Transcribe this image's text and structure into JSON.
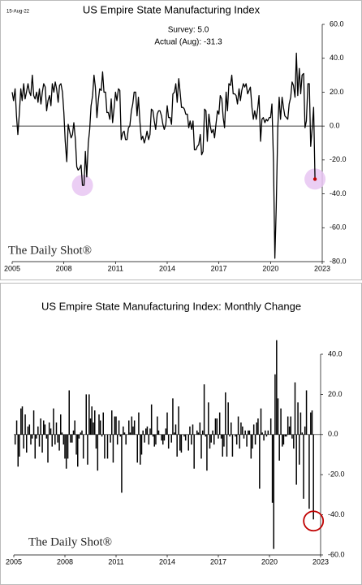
{
  "chart_data": [
    {
      "type": "line",
      "title": "US Empire State Manufacturing Index",
      "date": "15-Aug-22",
      "annotations": [
        "Survey:  5.0",
        "Actual (Aug):  -31.3"
      ],
      "logo": "The Daily Shot®",
      "color": "#000000",
      "marker_color": "#c00000",
      "highlight_color": "#e8c6f2",
      "x": [
        2005,
        2005.08,
        2005.17,
        2005.25,
        2005.33,
        2005.42,
        2005.5,
        2005.58,
        2005.67,
        2005.75,
        2005.83,
        2005.92,
        2006,
        2006.08,
        2006.17,
        2006.25,
        2006.33,
        2006.42,
        2006.5,
        2006.58,
        2006.67,
        2006.75,
        2006.83,
        2006.92,
        2007,
        2007.08,
        2007.17,
        2007.25,
        2007.33,
        2007.42,
        2007.5,
        2007.58,
        2007.67,
        2007.75,
        2007.83,
        2007.92,
        2008,
        2008.08,
        2008.17,
        2008.25,
        2008.33,
        2008.42,
        2008.5,
        2008.58,
        2008.67,
        2008.75,
        2008.83,
        2008.92,
        2009,
        2009.08,
        2009.17,
        2009.25,
        2009.33,
        2009.42,
        2009.5,
        2009.58,
        2009.67,
        2009.75,
        2009.83,
        2009.92,
        2010,
        2010.08,
        2010.17,
        2010.25,
        2010.33,
        2010.42,
        2010.5,
        2010.58,
        2010.67,
        2010.75,
        2010.83,
        2010.92,
        2011,
        2011.08,
        2011.17,
        2011.25,
        2011.33,
        2011.42,
        2011.5,
        2011.58,
        2011.67,
        2011.75,
        2011.83,
        2011.92,
        2012,
        2012.08,
        2012.17,
        2012.25,
        2012.33,
        2012.42,
        2012.5,
        2012.58,
        2012.67,
        2012.75,
        2012.83,
        2012.92,
        2013,
        2013.08,
        2013.17,
        2013.25,
        2013.33,
        2013.42,
        2013.5,
        2013.58,
        2013.67,
        2013.75,
        2013.83,
        2013.92,
        2014,
        2014.08,
        2014.17,
        2014.25,
        2014.33,
        2014.42,
        2014.5,
        2014.58,
        2014.67,
        2014.75,
        2014.83,
        2014.92,
        2015,
        2015.08,
        2015.17,
        2015.25,
        2015.33,
        2015.42,
        2015.5,
        2015.58,
        2015.67,
        2015.75,
        2015.83,
        2015.92,
        2016,
        2016.08,
        2016.17,
        2016.25,
        2016.33,
        2016.42,
        2016.5,
        2016.58,
        2016.67,
        2016.75,
        2016.83,
        2016.92,
        2017,
        2017.08,
        2017.17,
        2017.25,
        2017.33,
        2017.42,
        2017.5,
        2017.58,
        2017.67,
        2017.75,
        2017.83,
        2017.92,
        2018,
        2018.08,
        2018.17,
        2018.25,
        2018.33,
        2018.42,
        2018.5,
        2018.58,
        2018.67,
        2018.75,
        2018.83,
        2018.92,
        2019,
        2019.08,
        2019.17,
        2019.25,
        2019.33,
        2019.42,
        2019.5,
        2019.58,
        2019.67,
        2019.75,
        2019.83,
        2019.92,
        2020,
        2020.08,
        2020.17,
        2020.25,
        2020.33,
        2020.42,
        2020.5,
        2020.58,
        2020.67,
        2020.75,
        2020.83,
        2020.92,
        2021,
        2021.08,
        2021.17,
        2021.25,
        2021.33,
        2021.42,
        2021.5,
        2021.58,
        2021.67,
        2021.75,
        2021.83,
        2021.92,
        2022,
        2022.08,
        2022.17,
        2022.25,
        2022.33,
        2022.42,
        2022.5,
        2022.58
      ],
      "values": [
        20,
        15,
        22,
        6,
        -5,
        8,
        22,
        15,
        25,
        16,
        20,
        25,
        20,
        18,
        30,
        18,
        16,
        20,
        14,
        22,
        13,
        20,
        25,
        23,
        9,
        15,
        18,
        12,
        25,
        20,
        26,
        22,
        14,
        24,
        25,
        20,
        8,
        -9,
        -21,
        1,
        -3,
        -7,
        -5,
        2,
        -8,
        -24,
        -26,
        -25,
        -23,
        -35,
        -35,
        -15,
        -30,
        -10,
        -2,
        12,
        18,
        30,
        23,
        5,
        15,
        22,
        21,
        32,
        20,
        20,
        8,
        8,
        4,
        16,
        2,
        11,
        20,
        15,
        22,
        21,
        -8,
        -4,
        -3,
        -8,
        -8,
        -1,
        0,
        9,
        13,
        20,
        20,
        6,
        17,
        2,
        -8,
        -6,
        -10,
        -7,
        -3,
        -8,
        -5,
        10,
        9,
        3,
        -2,
        7,
        9,
        9,
        6,
        1,
        -2,
        1,
        12,
        5,
        5,
        1,
        19,
        20,
        25,
        14,
        28,
        20,
        11,
        11,
        10,
        7,
        7,
        -1,
        3,
        -2,
        3,
        -14,
        -14,
        -12,
        -11,
        -5,
        -17,
        -15,
        10,
        9,
        -9,
        7,
        0,
        -4,
        -2,
        -7,
        1,
        9,
        7,
        18,
        16,
        5,
        -1,
        20,
        9,
        25,
        24,
        30,
        19,
        19,
        18,
        13,
        22,
        15,
        21,
        25,
        23,
        25,
        19,
        21,
        23,
        11,
        4,
        9,
        4,
        10,
        18,
        -9,
        4,
        5,
        2,
        4,
        3,
        5,
        5,
        13,
        -21,
        -78,
        -48,
        -1,
        17,
        4,
        17,
        11,
        6,
        5,
        4,
        13,
        17,
        26,
        24,
        17,
        43,
        18,
        34,
        19,
        30,
        31,
        -1,
        3,
        25,
        25,
        -12,
        -1,
        11,
        -31.3
      ],
      "xlim": [
        2005,
        2023
      ],
      "xticks": [
        2005,
        2008,
        2011,
        2014,
        2017,
        2020,
        2023
      ],
      "ylim": [
        -80,
        60
      ],
      "yticks": [
        {
          "value": 60,
          "label": "60.0"
        },
        {
          "value": 40,
          "label": "40.0"
        },
        {
          "value": 20,
          "label": "20.0"
        },
        {
          "value": 0,
          "label": "0.0"
        },
        {
          "value": -20,
          "label": "-20.0"
        },
        {
          "value": -40,
          "label": "-40.0"
        },
        {
          "value": -60,
          "label": "-60.0"
        },
        {
          "value": -80,
          "label": "-80.0"
        }
      ]
    },
    {
      "type": "bar",
      "title": "US Empire State Manufacturing Index: Monthly Change",
      "logo": "The Daily Shot®",
      "color": "#000000",
      "highlight_color": "#c00000",
      "x": [
        2005.08,
        2005.17,
        2005.25,
        2005.33,
        2005.42,
        2005.5,
        2005.58,
        2005.67,
        2005.75,
        2005.83,
        2005.92,
        2006,
        2006.08,
        2006.17,
        2006.25,
        2006.33,
        2006.42,
        2006.5,
        2006.58,
        2006.67,
        2006.75,
        2006.83,
        2006.92,
        2007,
        2007.08,
        2007.17,
        2007.25,
        2007.33,
        2007.42,
        2007.5,
        2007.58,
        2007.67,
        2007.75,
        2007.83,
        2007.92,
        2008,
        2008.08,
        2008.17,
        2008.25,
        2008.33,
        2008.42,
        2008.5,
        2008.58,
        2008.67,
        2008.75,
        2008.83,
        2008.92,
        2009,
        2009.08,
        2009.17,
        2009.25,
        2009.33,
        2009.42,
        2009.5,
        2009.58,
        2009.67,
        2009.75,
        2009.83,
        2009.92,
        2010,
        2010.08,
        2010.17,
        2010.25,
        2010.33,
        2010.42,
        2010.5,
        2010.58,
        2010.67,
        2010.75,
        2010.83,
        2010.92,
        2011,
        2011.08,
        2011.17,
        2011.25,
        2011.33,
        2011.42,
        2011.5,
        2011.58,
        2011.67,
        2011.75,
        2011.83,
        2011.92,
        2012,
        2012.08,
        2012.17,
        2012.25,
        2012.33,
        2012.42,
        2012.5,
        2012.58,
        2012.67,
        2012.75,
        2012.83,
        2012.92,
        2013,
        2013.08,
        2013.17,
        2013.25,
        2013.33,
        2013.42,
        2013.5,
        2013.58,
        2013.67,
        2013.75,
        2013.83,
        2013.92,
        2014,
        2014.08,
        2014.17,
        2014.25,
        2014.33,
        2014.42,
        2014.5,
        2014.58,
        2014.67,
        2014.75,
        2014.83,
        2014.92,
        2015,
        2015.08,
        2015.17,
        2015.25,
        2015.33,
        2015.42,
        2015.5,
        2015.58,
        2015.67,
        2015.75,
        2015.83,
        2015.92,
        2016,
        2016.08,
        2016.17,
        2016.25,
        2016.33,
        2016.42,
        2016.5,
        2016.58,
        2016.67,
        2016.75,
        2016.83,
        2016.92,
        2017,
        2017.08,
        2017.17,
        2017.25,
        2017.33,
        2017.42,
        2017.5,
        2017.58,
        2017.67,
        2017.75,
        2017.83,
        2017.92,
        2018,
        2018.08,
        2018.17,
        2018.25,
        2018.33,
        2018.42,
        2018.5,
        2018.58,
        2018.67,
        2018.75,
        2018.83,
        2018.92,
        2019,
        2019.08,
        2019.17,
        2019.25,
        2019.33,
        2019.42,
        2019.5,
        2019.58,
        2019.67,
        2019.75,
        2019.83,
        2019.92,
        2020,
        2020.08,
        2020.17,
        2020.25,
        2020.33,
        2020.42,
        2020.5,
        2020.58,
        2020.67,
        2020.75,
        2020.83,
        2020.92,
        2021,
        2021.08,
        2021.17,
        2021.25,
        2021.33,
        2021.42,
        2021.5,
        2021.58,
        2021.67,
        2021.75,
        2021.83,
        2021.92,
        2022,
        2022.08,
        2022.17,
        2022.25,
        2022.33,
        2022.42,
        2022.5,
        2022.58
      ],
      "values": [
        -5,
        7,
        -16,
        -11,
        13,
        14,
        -7,
        10,
        -9,
        4,
        5,
        -5,
        -2,
        12,
        -12,
        -2,
        4,
        -6,
        8,
        -9,
        7,
        5,
        -2,
        -14,
        6,
        3,
        -6,
        13,
        -5,
        6,
        -4,
        -8,
        10,
        1,
        -5,
        -12,
        -17,
        -12,
        22,
        -4,
        -4,
        2,
        7,
        -10,
        -16,
        -2,
        1,
        2,
        -12,
        0,
        20,
        -15,
        20,
        8,
        14,
        6,
        12,
        -7,
        -18,
        10,
        7,
        -1,
        11,
        -12,
        0,
        -12,
        0,
        -4,
        12,
        -14,
        9,
        9,
        -5,
        7,
        -1,
        -29,
        4,
        1,
        -5,
        0,
        7,
        1,
        9,
        4,
        7,
        0,
        -14,
        11,
        -15,
        -10,
        2,
        -4,
        3,
        4,
        -5,
        3,
        15,
        -1,
        -6,
        -5,
        9,
        2,
        0,
        -3,
        -5,
        -3,
        3,
        11,
        -7,
        0,
        -4,
        18,
        1,
        5,
        -11,
        14,
        -8,
        -9,
        0,
        -1,
        -3,
        0,
        -8,
        4,
        -5,
        5,
        -17,
        0,
        2,
        1,
        6,
        -12,
        2,
        25,
        -1,
        -18,
        16,
        -7,
        -4,
        2,
        -5,
        8,
        8,
        -2,
        11,
        -2,
        -11,
        -6,
        21,
        -11,
        16,
        -1,
        6,
        -11,
        0,
        -1,
        -5,
        9,
        -7,
        6,
        4,
        -2,
        2,
        -6,
        2,
        2,
        -12,
        -7,
        5,
        -5,
        6,
        8,
        -27,
        13,
        1,
        -3,
        2,
        -1,
        2,
        0,
        8,
        -34,
        -57,
        30,
        47,
        18,
        -13,
        13,
        -6,
        -5,
        -1,
        -1,
        9,
        4,
        9,
        -2,
        -7,
        26,
        -25,
        16,
        -15,
        11,
        1,
        -32,
        4,
        22,
        0,
        -37,
        11,
        12,
        -42.3
      ],
      "xlim": [
        2005,
        2023
      ],
      "xticks": [
        2005,
        2008,
        2011,
        2014,
        2017,
        2020,
        2023
      ],
      "ylim": [
        -60,
        40
      ],
      "yticks": [
        {
          "value": 40,
          "label": "40.0"
        },
        {
          "value": 20,
          "label": "20.0"
        },
        {
          "value": 0,
          "label": "0.0"
        },
        {
          "value": -20,
          "label": "-20.0"
        },
        {
          "value": -40,
          "label": "-40.0"
        },
        {
          "value": -60,
          "label": "-60.0"
        }
      ]
    }
  ]
}
